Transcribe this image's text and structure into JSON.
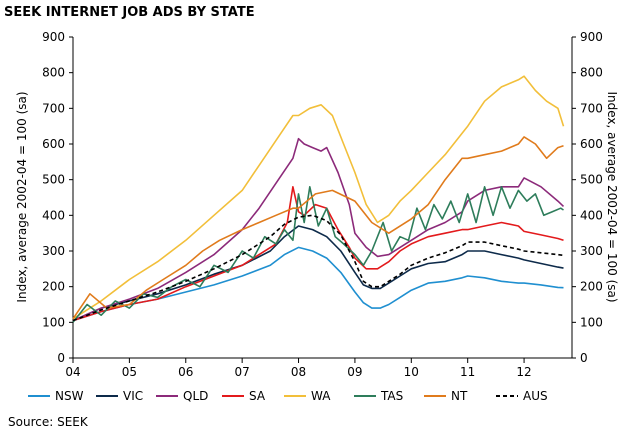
{
  "chart_data": {
    "type": "line",
    "title": "SEEK INTERNET JOB ADS BY STATE",
    "ylabel_left": "Index, average 2002-04 = 100 (sa)",
    "ylabel_right": "Index, average 2002-04 = 100 (sa)",
    "source": "Source: SEEK",
    "ylim": [
      0,
      900
    ],
    "yticks": [
      0,
      100,
      200,
      300,
      400,
      500,
      600,
      700,
      800,
      900
    ],
    "xlim": [
      2004,
      2012.85
    ],
    "xtick_labels": [
      "04",
      "05",
      "06",
      "07",
      "08",
      "09",
      "10",
      "11",
      "12"
    ],
    "xtick_values": [
      2004,
      2005,
      2006,
      2007,
      2008,
      2009,
      2010,
      2011,
      2012
    ],
    "series": [
      {
        "name": "NSW",
        "color": "#1f8fd0",
        "dash": "solid",
        "x": [
          2004.0,
          2004.5,
          2005.0,
          2005.5,
          2006.0,
          2006.5,
          2007.0,
          2007.5,
          2007.75,
          2008.0,
          2008.25,
          2008.5,
          2008.75,
          2009.0,
          2009.15,
          2009.3,
          2009.45,
          2009.6,
          2009.8,
          2010.0,
          2010.3,
          2010.6,
          2010.9,
          2011.0,
          2011.3,
          2011.6,
          2011.9,
          2012.0,
          2012.3,
          2012.6,
          2012.7
        ],
        "y": [
          105,
          130,
          150,
          165,
          185,
          205,
          230,
          260,
          290,
          310,
          300,
          280,
          240,
          185,
          155,
          140,
          140,
          150,
          170,
          190,
          210,
          215,
          225,
          230,
          225,
          215,
          210,
          210,
          205,
          198,
          197
        ]
      },
      {
        "name": "VIC",
        "color": "#0d2a4a",
        "dash": "solid",
        "x": [
          2004.0,
          2004.5,
          2005.0,
          2005.5,
          2006.0,
          2006.5,
          2007.0,
          2007.5,
          2007.75,
          2008.0,
          2008.25,
          2008.5,
          2008.75,
          2009.0,
          2009.15,
          2009.3,
          2009.45,
          2009.6,
          2009.8,
          2010.0,
          2010.3,
          2010.6,
          2010.9,
          2011.0,
          2011.3,
          2011.6,
          2011.9,
          2012.0,
          2012.3,
          2012.6,
          2012.7
        ],
        "y": [
          105,
          140,
          160,
          180,
          205,
          235,
          260,
          300,
          340,
          370,
          360,
          340,
          300,
          240,
          205,
          195,
          195,
          210,
          230,
          250,
          265,
          270,
          290,
          300,
          300,
          290,
          280,
          275,
          265,
          255,
          252
        ]
      },
      {
        "name": "QLD",
        "color": "#8c2a7a",
        "dash": "solid",
        "x": [
          2004.0,
          2004.5,
          2005.0,
          2005.5,
          2006.0,
          2006.5,
          2007.0,
          2007.3,
          2007.6,
          2007.9,
          2008.0,
          2008.1,
          2008.25,
          2008.4,
          2008.5,
          2008.7,
          2008.9,
          2009.0,
          2009.2,
          2009.4,
          2009.6,
          2009.8,
          2010.0,
          2010.3,
          2010.6,
          2010.9,
          2011.0,
          2011.3,
          2011.6,
          2011.9,
          2012.0,
          2012.3,
          2012.6,
          2012.7
        ],
        "y": [
          105,
          140,
          165,
          195,
          240,
          290,
          360,
          420,
          490,
          560,
          615,
          600,
          590,
          580,
          590,
          520,
          430,
          350,
          310,
          285,
          290,
          310,
          330,
          360,
          380,
          410,
          440,
          470,
          480,
          480,
          505,
          480,
          440,
          425
        ]
      },
      {
        "name": "SA",
        "color": "#e31a1c",
        "dash": "solid",
        "x": [
          2004.0,
          2004.5,
          2005.0,
          2005.5,
          2006.0,
          2006.5,
          2007.0,
          2007.3,
          2007.6,
          2007.8,
          2007.9,
          2008.0,
          2008.1,
          2008.3,
          2008.5,
          2008.7,
          2008.9,
          2009.0,
          2009.2,
          2009.4,
          2009.6,
          2009.8,
          2010.0,
          2010.3,
          2010.6,
          2010.9,
          2011.0,
          2011.3,
          2011.6,
          2011.9,
          2012.0,
          2012.3,
          2012.6,
          2012.7
        ],
        "y": [
          105,
          130,
          150,
          165,
          200,
          230,
          260,
          290,
          320,
          380,
          480,
          410,
          400,
          430,
          420,
          360,
          310,
          280,
          250,
          250,
          270,
          300,
          320,
          340,
          350,
          360,
          360,
          370,
          380,
          370,
          355,
          345,
          335,
          330
        ]
      },
      {
        "name": "WA",
        "color": "#f2bf3a",
        "dash": "solid",
        "x": [
          2004.0,
          2004.5,
          2005.0,
          2005.5,
          2006.0,
          2006.5,
          2007.0,
          2007.3,
          2007.6,
          2007.9,
          2008.0,
          2008.2,
          2008.4,
          2008.6,
          2008.8,
          2009.0,
          2009.2,
          2009.4,
          2009.6,
          2009.8,
          2010.0,
          2010.3,
          2010.6,
          2010.9,
          2011.0,
          2011.3,
          2011.6,
          2011.9,
          2012.0,
          2012.2,
          2012.4,
          2012.6,
          2012.7
        ],
        "y": [
          110,
          160,
          220,
          270,
          330,
          400,
          470,
          540,
          610,
          680,
          680,
          700,
          710,
          680,
          600,
          520,
          430,
          380,
          400,
          440,
          470,
          520,
          570,
          630,
          650,
          720,
          760,
          780,
          790,
          750,
          720,
          700,
          650
        ]
      },
      {
        "name": "TAS",
        "color": "#2e7d5b",
        "dash": "solid",
        "x": [
          2004.0,
          2004.25,
          2004.5,
          2004.75,
          2005.0,
          2005.25,
          2005.5,
          2005.75,
          2006.0,
          2006.25,
          2006.5,
          2006.75,
          2007.0,
          2007.2,
          2007.4,
          2007.6,
          2007.75,
          2007.9,
          2008.0,
          2008.1,
          2008.2,
          2008.35,
          2008.5,
          2008.65,
          2008.8,
          2009.0,
          2009.15,
          2009.3,
          2009.5,
          2009.65,
          2009.8,
          2009.95,
          2010.1,
          2010.25,
          2010.4,
          2010.55,
          2010.7,
          2010.85,
          2011.0,
          2011.15,
          2011.3,
          2011.45,
          2011.6,
          2011.75,
          2011.9,
          2012.05,
          2012.2,
          2012.35,
          2012.5,
          2012.65,
          2012.7
        ],
        "y": [
          100,
          150,
          120,
          160,
          140,
          180,
          170,
          200,
          220,
          200,
          260,
          240,
          300,
          280,
          340,
          320,
          360,
          330,
          460,
          380,
          480,
          370,
          420,
          340,
          320,
          290,
          260,
          300,
          380,
          300,
          340,
          330,
          420,
          360,
          430,
          390,
          440,
          380,
          460,
          380,
          480,
          400,
          480,
          420,
          470,
          440,
          460,
          400,
          410,
          420,
          415
        ]
      },
      {
        "name": "NT",
        "color": "#e07b1c",
        "dash": "solid",
        "x": [
          2004.0,
          2004.3,
          2004.6,
          2005.0,
          2005.3,
          2005.6,
          2006.0,
          2006.3,
          2006.6,
          2007.0,
          2007.3,
          2007.6,
          2007.9,
          2008.0,
          2008.3,
          2008.6,
          2009.0,
          2009.3,
          2009.6,
          2010.0,
          2010.3,
          2010.6,
          2010.9,
          2011.0,
          2011.3,
          2011.6,
          2011.9,
          2012.0,
          2012.2,
          2012.4,
          2012.6,
          2012.7
        ],
        "y": [
          110,
          180,
          140,
          150,
          190,
          220,
          260,
          300,
          330,
          360,
          380,
          400,
          420,
          420,
          460,
          470,
          440,
          380,
          350,
          390,
          430,
          500,
          560,
          560,
          570,
          580,
          600,
          620,
          600,
          560,
          590,
          595
        ]
      },
      {
        "name": "AUS",
        "color": "#000000",
        "dash": "4,3",
        "x": [
          2004.0,
          2004.5,
          2005.0,
          2005.5,
          2006.0,
          2006.5,
          2007.0,
          2007.5,
          2007.75,
          2008.0,
          2008.25,
          2008.5,
          2008.75,
          2009.0,
          2009.15,
          2009.3,
          2009.45,
          2009.6,
          2009.8,
          2010.0,
          2010.3,
          2010.6,
          2010.9,
          2011.0,
          2011.3,
          2011.6,
          2011.9,
          2012.0,
          2012.3,
          2012.6,
          2012.7
        ],
        "y": [
          105,
          135,
          160,
          185,
          215,
          250,
          290,
          340,
          375,
          395,
          400,
          385,
          345,
          270,
          215,
          200,
          200,
          215,
          235,
          260,
          280,
          295,
          315,
          325,
          325,
          315,
          305,
          300,
          295,
          290,
          288
        ]
      }
    ]
  }
}
